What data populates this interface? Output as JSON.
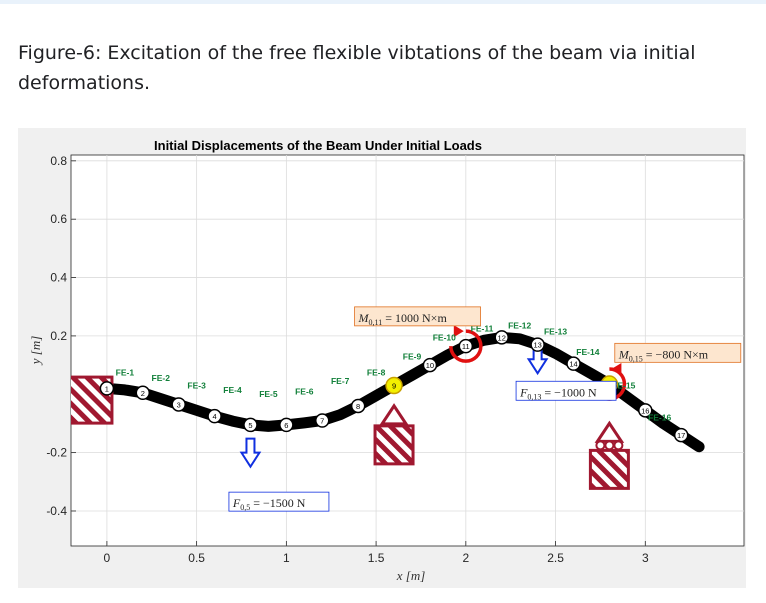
{
  "caption": "Figure-6: Excitation of the free flexible vibtations of the beam via initial deformations.",
  "colors": {
    "beam": "#000000",
    "support": "#a01830",
    "load_arrow": "#1030e0",
    "moment": "#e01010",
    "element_label": "#12803a",
    "node_fill": "#ffffff",
    "highlight_node": "#f4f000",
    "moment_box_fill": "#fde6cf",
    "moment_box_border": "#e07020",
    "force_box_fill": "#ffffff",
    "force_box_border": "#1030e0"
  },
  "chart_data": {
    "type": "line",
    "title": "Initial Displacements of the Beam Under Initial Loads",
    "xlabel": "x [m]",
    "ylabel": "y [m]",
    "xlim": [
      -0.2,
      3.55
    ],
    "ylim": [
      -0.52,
      0.82
    ],
    "xticks": [
      0,
      0.5,
      1,
      1.5,
      2,
      2.5,
      3
    ],
    "xtick_labels": [
      "0",
      "0.5",
      "1",
      "1.5",
      "2",
      "2.5",
      "3"
    ],
    "yticks": [
      -0.4,
      -0.2,
      0.2,
      0.4,
      0.6,
      0.8
    ],
    "ytick_labels": [
      "-0.4",
      "-0.2",
      "0.2",
      "0.4",
      "0.6",
      "0.8"
    ],
    "grid": true,
    "nodes": {
      "labels": [
        "1",
        "2",
        "3",
        "4",
        "5",
        "6",
        "7",
        "8",
        "9",
        "10",
        "11",
        "12",
        "13",
        "14",
        "15",
        "16",
        "17"
      ],
      "x": [
        0.0,
        0.2,
        0.4,
        0.6,
        0.8,
        1.0,
        1.2,
        1.4,
        1.6,
        1.8,
        2.0,
        2.2,
        2.4,
        2.6,
        2.8,
        3.0,
        3.2
      ],
      "y": [
        0.02,
        0.005,
        -0.035,
        -0.075,
        -0.105,
        -0.105,
        -0.09,
        -0.04,
        0.03,
        0.1,
        0.165,
        0.195,
        0.17,
        0.105,
        0.035,
        -0.055,
        -0.14
      ],
      "highlighted": [
        "9",
        "15"
      ]
    },
    "elements": {
      "labels": [
        "FE-1",
        "FE-2",
        "FE-3",
        "FE-4",
        "FE-5",
        "FE-6",
        "FE-7",
        "FE-8",
        "FE-9",
        "FE-10",
        "FE-11",
        "FE-12",
        "FE-13",
        "FE-14",
        "FE-15",
        "FE-16"
      ],
      "x": [
        0.1,
        0.3,
        0.5,
        0.7,
        0.9,
        1.1,
        1.3,
        1.5,
        1.7,
        1.88,
        2.09,
        2.3,
        2.5,
        2.68,
        2.88,
        3.08
      ],
      "y": [
        0.065,
        0.045,
        0.02,
        0.005,
        -0.01,
        0.0,
        0.035,
        0.065,
        0.12,
        0.185,
        0.215,
        0.225,
        0.205,
        0.135,
        0.02,
        -0.09
      ]
    },
    "beam_curve": {
      "x": [
        -0.2,
        0.0,
        0.1,
        0.2,
        0.3,
        0.4,
        0.5,
        0.6,
        0.7,
        0.8,
        0.9,
        1.0,
        1.1,
        1.2,
        1.3,
        1.4,
        1.5,
        1.6,
        1.7,
        1.8,
        1.9,
        2.0,
        2.1,
        2.2,
        2.3,
        2.4,
        2.5,
        2.6,
        2.7,
        2.8,
        2.9,
        3.0,
        3.1,
        3.2,
        3.3
      ],
      "y": [
        0.02,
        0.02,
        0.015,
        0.005,
        -0.015,
        -0.035,
        -0.055,
        -0.075,
        -0.092,
        -0.105,
        -0.11,
        -0.105,
        -0.098,
        -0.09,
        -0.07,
        -0.04,
        -0.005,
        0.03,
        0.065,
        0.1,
        0.135,
        0.165,
        0.185,
        0.195,
        0.19,
        0.17,
        0.14,
        0.105,
        0.07,
        0.035,
        -0.01,
        -0.055,
        -0.1,
        -0.14,
        -0.18
      ]
    },
    "supports": [
      {
        "name": "fixed-support",
        "x": -0.1,
        "y": -0.02
      },
      {
        "name": "pin-support-9",
        "x": 1.6,
        "y": -0.17
      },
      {
        "name": "roller-support-15",
        "x": 2.8,
        "y": -0.23
      }
    ],
    "loads": [
      {
        "type": "force",
        "node": "5",
        "value": -1500,
        "label": "F_{0,5} = −1500 N",
        "label_sub": "0,5",
        "label_value": "= −1500 N",
        "x": 0.8,
        "y": -0.2
      },
      {
        "type": "force",
        "node": "13",
        "value": -1000,
        "label": "F_{0,13} = −1000 N",
        "label_sub": "0,13",
        "label_value": "= −1000 N",
        "x": 2.4,
        "y": 0.12
      },
      {
        "type": "moment",
        "node": "11",
        "value": 1000,
        "label": "M_{0,11} = 1000 N×m",
        "label_sub": "0,11",
        "label_value": "= 1000 N×m",
        "x": 2.0,
        "y": 0.165
      },
      {
        "type": "moment",
        "node": "15",
        "value": -800,
        "label": "M_{0,15} = −800 N×m",
        "label_sub": "0,15",
        "label_value": "= −800 N×m",
        "x": 2.8,
        "y": 0.035
      }
    ],
    "label_F": "F",
    "label_M": "M"
  }
}
